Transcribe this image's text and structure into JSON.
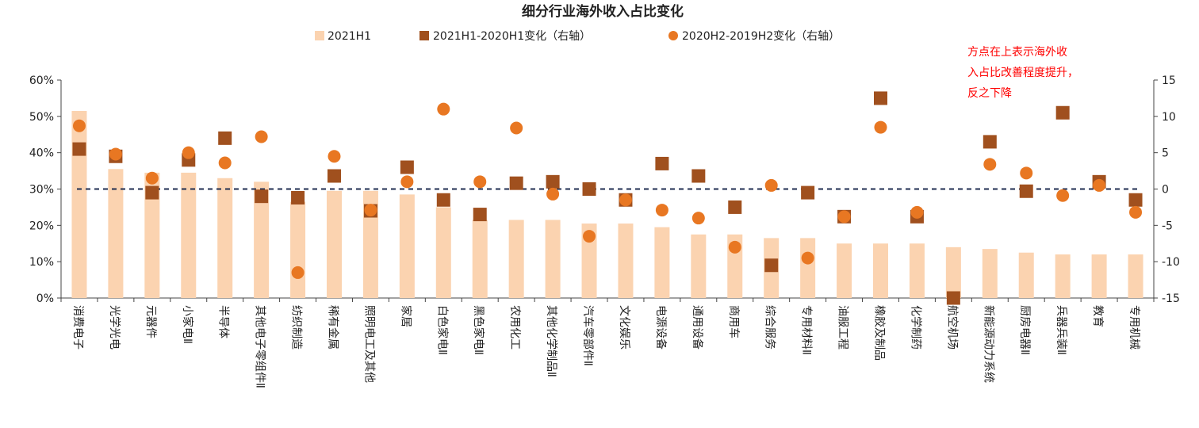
{
  "chart_data": {
    "type": "bar",
    "title": "细分行业海外收入占比变化",
    "categories": [
      "消费电子",
      "光学光电",
      "元器件",
      "小家电Ⅱ",
      "半导体",
      "其他电子零组件Ⅱ",
      "纺织制造",
      "稀有金属",
      "照明电工及其他",
      "家居",
      "白色家电Ⅱ",
      "黑色家电Ⅱ",
      "农用化工",
      "其他化学制品Ⅱ",
      "汽车零部件Ⅱ",
      "文化娱乐",
      "电源设备",
      "通用设备",
      "商用车",
      "综合服务",
      "专用材料Ⅱ",
      "油服工程",
      "橡胶及制品",
      "化学制药",
      "航空机场",
      "新能源动力系统",
      "厨房电器Ⅱ",
      "兵器兵装Ⅱ",
      "教育",
      "专用机械"
    ],
    "series": [
      {
        "name": "2021H1",
        "kind": "bar",
        "axis": "left",
        "color": "#fbd3b0",
        "values": [
          51.5,
          35.5,
          34.5,
          34.5,
          33,
          32,
          26.5,
          29.5,
          29.5,
          28.5,
          25,
          21.5,
          21.5,
          21.5,
          20.5,
          20.5,
          19.5,
          17.5,
          17.5,
          16.5,
          16.5,
          15,
          15,
          15,
          14,
          13.5,
          12.5,
          12,
          12,
          12
        ]
      },
      {
        "name": "2021H1-2020H1变化（右轴）",
        "kind": "square",
        "axis": "right",
        "color": "#a0501e",
        "values": [
          5.5,
          4.5,
          -0.5,
          4,
          7,
          -1,
          -1.2,
          1.8,
          -3,
          3,
          -1.5,
          -3.5,
          0.8,
          1,
          0,
          -1.5,
          3.5,
          1.8,
          -2.5,
          -10.5,
          -0.5,
          -3.8,
          12.5,
          -3.8,
          -15,
          6.5,
          -0.3,
          10.5,
          1,
          -1.5
        ]
      },
      {
        "name": "2020H2-2019H2变化（右轴）",
        "kind": "circle",
        "axis": "right",
        "color": "#e87722",
        "values": [
          8.7,
          4.8,
          1.5,
          5,
          3.6,
          7.2,
          -11.5,
          4.5,
          -2.9,
          1,
          11,
          1,
          8.4,
          -0.7,
          -6.5,
          -1.5,
          -2.9,
          -4,
          -8,
          0.5,
          -9.5,
          -3.8,
          8.5,
          -3.2,
          null,
          3.4,
          2.2,
          -0.9,
          0.5,
          -3.2
        ]
      }
    ],
    "y_left": {
      "min": 0,
      "max": 60,
      "ticks": [
        0,
        10,
        20,
        30,
        40,
        50,
        60
      ],
      "suffix": "%"
    },
    "y_right": {
      "min": -15,
      "max": 15,
      "ticks": [
        -15,
        -10,
        -5,
        0,
        5,
        10,
        15
      ]
    },
    "reference_line": 0,
    "reference_line_style": "dashed",
    "reference_line_color": "#1f2d50",
    "legend_position": "top",
    "annotation": {
      "lines": [
        "方点在上表示海外收",
        "入占比改善程度提升，",
        "反之下降"
      ],
      "color": "#ff0000",
      "placement": "top-right"
    },
    "grid": false
  }
}
